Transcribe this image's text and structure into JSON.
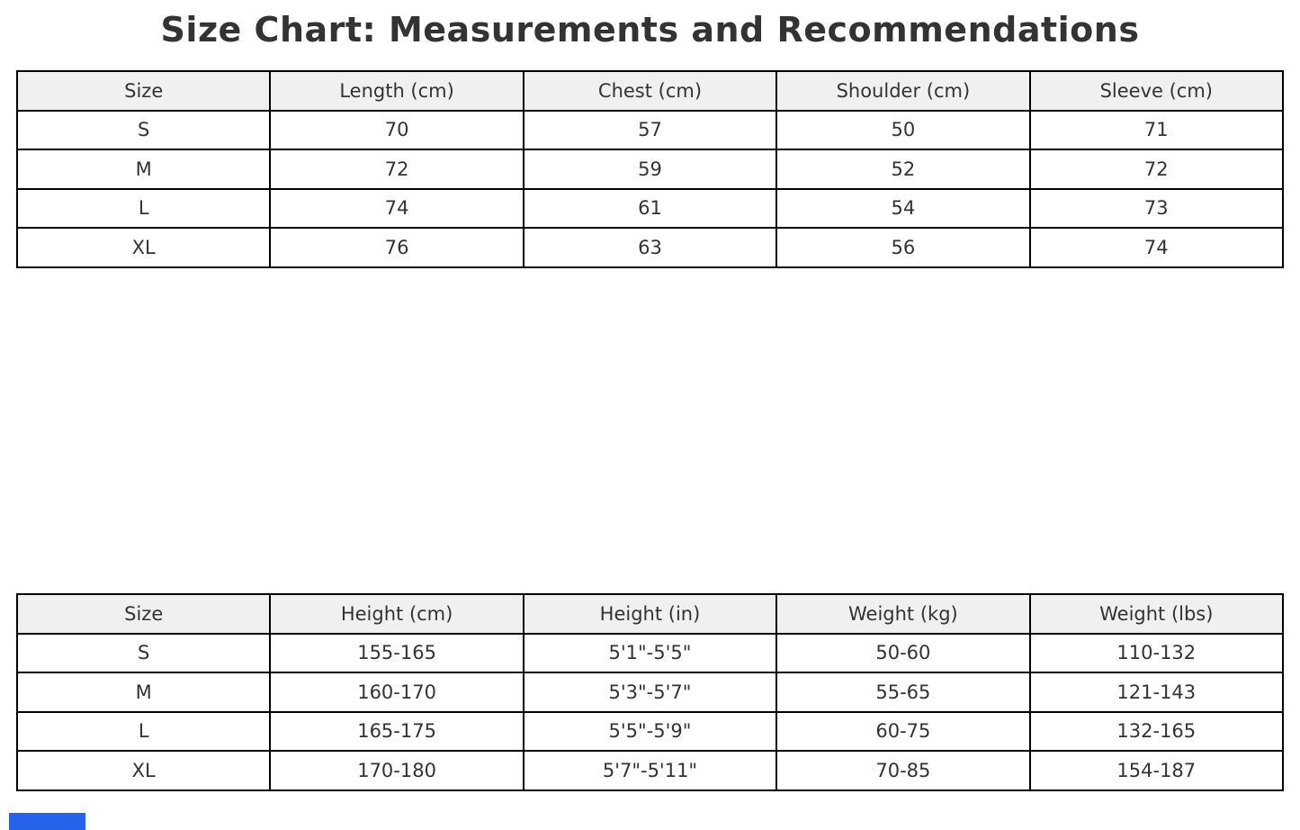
{
  "title": "Size Chart: Measurements and Recommendations",
  "colors": {
    "text": "#333333",
    "border": "#000000",
    "header_bg": "#f0f0f0",
    "accent_bar": "#2563eb"
  },
  "chart_data": [
    {
      "type": "table",
      "name": "garment-measurements",
      "columns": [
        "Size",
        "Length (cm)",
        "Chest (cm)",
        "Shoulder (cm)",
        "Sleeve (cm)"
      ],
      "rows": [
        [
          "S",
          "70",
          "57",
          "50",
          "71"
        ],
        [
          "M",
          "72",
          "59",
          "52",
          "72"
        ],
        [
          "L",
          "74",
          "61",
          "54",
          "73"
        ],
        [
          "XL",
          "76",
          "63",
          "56",
          "74"
        ]
      ]
    },
    {
      "type": "table",
      "name": "size-recommendations",
      "columns": [
        "Size",
        "Height (cm)",
        "Height (in)",
        "Weight (kg)",
        "Weight (lbs)"
      ],
      "rows": [
        [
          "S",
          "155-165",
          "5'1\"-5'5\"",
          "50-60",
          "110-132"
        ],
        [
          "M",
          "160-170",
          "5'3\"-5'7\"",
          "55-65",
          "121-143"
        ],
        [
          "L",
          "165-175",
          "5'5\"-5'9\"",
          "60-75",
          "132-165"
        ],
        [
          "XL",
          "170-180",
          "5'7\"-5'11\"",
          "70-85",
          "154-187"
        ]
      ]
    }
  ]
}
